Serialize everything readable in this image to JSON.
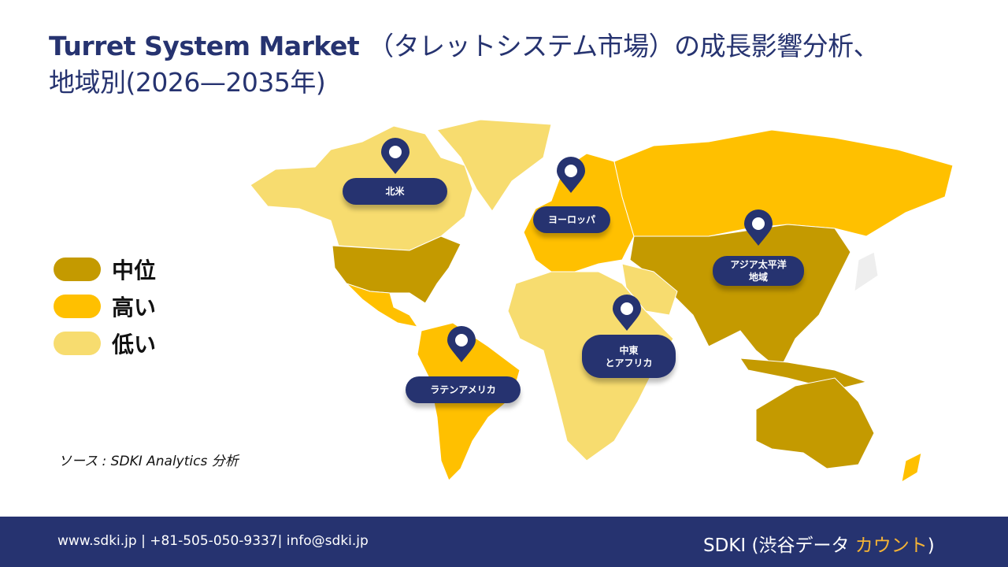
{
  "title": {
    "en": "Turret System Market",
    "jp": "（タレットシステム市場）の成長影響分析、",
    "line2": "地域別(2026—2035年)"
  },
  "legend": [
    {
      "label": "中位",
      "color": "#C49A00"
    },
    {
      "label": "高い",
      "color": "#FFC000"
    },
    {
      "label": "低い",
      "color": "#F7DC6F"
    }
  ],
  "regions": [
    {
      "label": "北米",
      "icon": "map-pin-icon"
    },
    {
      "label": "ヨーロッパ",
      "icon": "map-pin-icon"
    },
    {
      "label": "アジア太平洋\n地域",
      "line1": "アジア太平洋",
      "line2": "地域",
      "icon": "map-pin-icon"
    },
    {
      "label": "中東\nとアフリカ",
      "line1": "中東",
      "line2": "とアフリカ",
      "icon": "map-pin-icon"
    },
    {
      "label": "ラテンアメリカ",
      "icon": "map-pin-icon"
    }
  ],
  "source": "ソース : SDKI Analytics 分析",
  "footer": {
    "contact": "www.sdki.jp | +81-505-050-9337| info@sdki.jp",
    "brand_main": "SDKI (渋谷データ ",
    "brand_accent": "カウント",
    ">": "",
    "brand_close": ")"
  },
  "colors": {
    "navy": "#263370",
    "mid": "#C49A00",
    "high": "#FFC000",
    "low": "#F7DC6F"
  }
}
